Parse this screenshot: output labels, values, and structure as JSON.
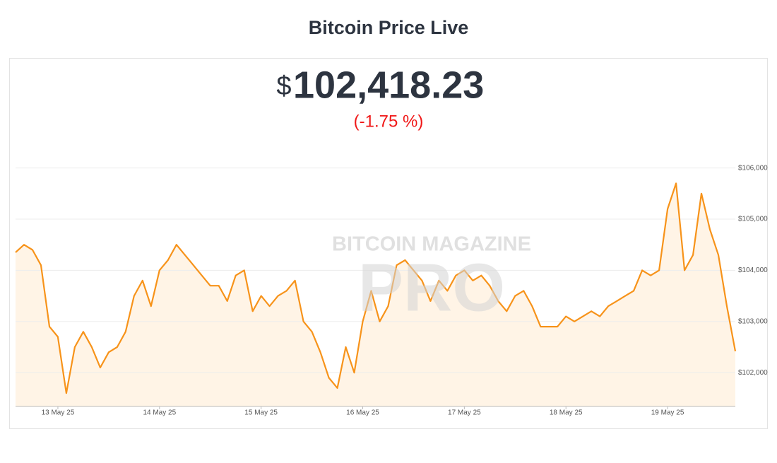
{
  "chart_data": {
    "type": "line",
    "title": "Bitcoin Price Live",
    "currency": "$",
    "price": "102,418.23",
    "change": "(-1.75 %)",
    "watermark": {
      "line1": "BITCOIN MAGAZINE",
      "line2": "PRO"
    },
    "color": "#f7931a",
    "fill_color": "#fff4e6",
    "grid": true,
    "x": [
      "2025-05-12T14:00",
      "2025-05-12T16:00",
      "2025-05-12T18:00",
      "2025-05-12T20:00",
      "2025-05-12T22:00",
      "2025-05-13T00:00",
      "2025-05-13T02:00",
      "2025-05-13T04:00",
      "2025-05-13T06:00",
      "2025-05-13T08:00",
      "2025-05-13T10:00",
      "2025-05-13T12:00",
      "2025-05-13T14:00",
      "2025-05-13T16:00",
      "2025-05-13T18:00",
      "2025-05-13T20:00",
      "2025-05-13T22:00",
      "2025-05-14T00:00",
      "2025-05-14T02:00",
      "2025-05-14T04:00",
      "2025-05-14T06:00",
      "2025-05-14T08:00",
      "2025-05-14T10:00",
      "2025-05-14T12:00",
      "2025-05-14T14:00",
      "2025-05-14T16:00",
      "2025-05-14T18:00",
      "2025-05-14T20:00",
      "2025-05-14T22:00",
      "2025-05-15T00:00",
      "2025-05-15T02:00",
      "2025-05-15T04:00",
      "2025-05-15T06:00",
      "2025-05-15T08:00",
      "2025-05-15T10:00",
      "2025-05-15T12:00",
      "2025-05-15T14:00",
      "2025-05-15T16:00",
      "2025-05-15T18:00",
      "2025-05-15T20:00",
      "2025-05-15T22:00",
      "2025-05-16T00:00",
      "2025-05-16T02:00",
      "2025-05-16T04:00",
      "2025-05-16T06:00",
      "2025-05-16T08:00",
      "2025-05-16T10:00",
      "2025-05-16T12:00",
      "2025-05-16T14:00",
      "2025-05-16T16:00",
      "2025-05-16T18:00",
      "2025-05-16T20:00",
      "2025-05-16T22:00",
      "2025-05-17T00:00",
      "2025-05-17T02:00",
      "2025-05-17T04:00",
      "2025-05-17T06:00",
      "2025-05-17T08:00",
      "2025-05-17T10:00",
      "2025-05-17T12:00",
      "2025-05-17T14:00",
      "2025-05-17T16:00",
      "2025-05-17T18:00",
      "2025-05-17T20:00",
      "2025-05-17T22:00",
      "2025-05-18T00:00",
      "2025-05-18T02:00",
      "2025-05-18T04:00",
      "2025-05-18T06:00",
      "2025-05-18T08:00",
      "2025-05-18T10:00",
      "2025-05-18T12:00",
      "2025-05-18T14:00",
      "2025-05-18T16:00",
      "2025-05-18T18:00",
      "2025-05-18T20:00",
      "2025-05-18T22:00",
      "2025-05-19T00:00",
      "2025-05-19T02:00",
      "2025-05-19T04:00",
      "2025-05-19T06:00",
      "2025-05-19T08:00",
      "2025-05-19T10:00",
      "2025-05-19T12:00",
      "2025-05-19T14:00",
      "2025-05-19T16:00"
    ],
    "values": [
      104350,
      104500,
      104400,
      104100,
      102900,
      102700,
      101600,
      102500,
      102800,
      102500,
      102100,
      102400,
      102500,
      102800,
      103500,
      103800,
      103300,
      104000,
      104200,
      104500,
      104300,
      104100,
      103900,
      103700,
      103700,
      103400,
      103900,
      104000,
      103200,
      103500,
      103300,
      103500,
      103600,
      103800,
      103000,
      102800,
      102400,
      101900,
      101700,
      102500,
      102000,
      103000,
      103600,
      103000,
      103300,
      104100,
      104200,
      104000,
      103800,
      103400,
      103800,
      103600,
      103900,
      104000,
      103800,
      103900,
      103700,
      103400,
      103200,
      103500,
      103600,
      103300,
      102900,
      102900,
      102900,
      103100,
      103000,
      103100,
      103200,
      103100,
      103300,
      103400,
      103500,
      103600,
      104000,
      103900,
      104000,
      105200,
      105700,
      104000,
      104300,
      105500,
      104800,
      104300,
      103300,
      102418.23
    ],
    "xlim": [
      "2025-05-12T14:00",
      "2025-05-19T16:00"
    ],
    "xticks": [
      {
        "value": "2025-05-13T00:00",
        "label": "13 May 25"
      },
      {
        "value": "2025-05-14T00:00",
        "label": "14 May 25"
      },
      {
        "value": "2025-05-15T00:00",
        "label": "15 May 25"
      },
      {
        "value": "2025-05-16T00:00",
        "label": "16 May 25"
      },
      {
        "value": "2025-05-17T00:00",
        "label": "17 May 25"
      },
      {
        "value": "2025-05-18T00:00",
        "label": "18 May 25"
      },
      {
        "value": "2025-05-19T00:00",
        "label": "19 May 25"
      }
    ],
    "ylim": [
      101340,
      106520
    ],
    "yticks": [
      {
        "value": 102000,
        "label": "$102,000"
      },
      {
        "value": 103000,
        "label": "$103,000"
      },
      {
        "value": 104000,
        "label": "$104,000"
      },
      {
        "value": 105000,
        "label": "$105,000"
      },
      {
        "value": 106000,
        "label": "$106,000"
      }
    ]
  }
}
